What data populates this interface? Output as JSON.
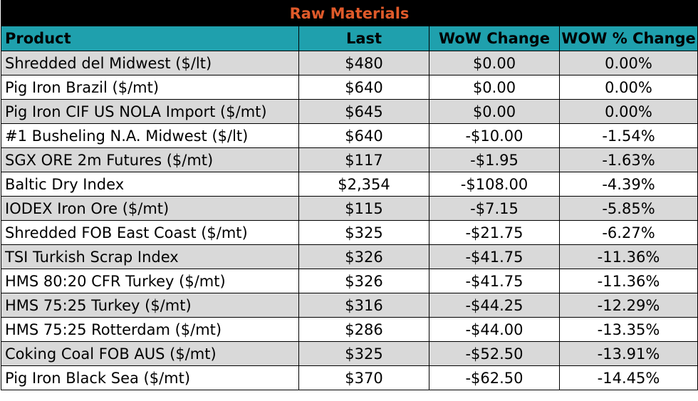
{
  "title": "Raw Materials",
  "headers": [
    "Product",
    "Last",
    "WoW Change",
    "WOW % Change"
  ],
  "rows": [
    [
      "Shredded del  Midwest ($/lt)",
      "$480",
      "$0.00",
      "0.00%"
    ],
    [
      "Pig Iron Brazil ($/mt)",
      "$640",
      "$0.00",
      "0.00%"
    ],
    [
      "Pig Iron CIF US NOLA Import ($/mt)",
      "$645",
      "$0.00",
      "0.00%"
    ],
    [
      "#1 Busheling N.A. Midwest ($/lt)",
      "$640",
      "-$10.00",
      "-1.54%"
    ],
    [
      "SGX ORE 2m Futures ($/mt)",
      "$117",
      "-$1.95",
      "-1.63%"
    ],
    [
      "Baltic Dry Index",
      "$2,354",
      "-$108.00",
      "-4.39%"
    ],
    [
      "IODEX  Iron Ore ($/mt)",
      "$115",
      "-$7.15",
      "-5.85%"
    ],
    [
      "Shredded FOB East Coast ($/mt)",
      "$325",
      "-$21.75",
      "-6.27%"
    ],
    [
      "TSI Turkish Scrap Index",
      "$326",
      "-$41.75",
      "-11.36%"
    ],
    [
      "HMS 80:20 CFR Turkey ($/mt)",
      "$326",
      "-$41.75",
      "-11.36%"
    ],
    [
      "HMS 75:25 Turkey ($/mt)",
      "$316",
      "-$44.25",
      "-12.29%"
    ],
    [
      "HMS 75:25 Rotterdam ($/mt)",
      "$286",
      "-$44.00",
      "-13.35%"
    ],
    [
      "Coking Coal FOB AUS ($/mt)",
      "$325",
      "-$52.50",
      "-13.91%"
    ],
    [
      "Pig Iron Black Sea ($/mt)",
      "$370",
      "-$62.50",
      "-14.45%"
    ]
  ],
  "colors": {
    "title_bg": "#000000",
    "title_text": "#e05a2a",
    "header_bg": "#1fa0ad",
    "row_shade": "#d9d9d9",
    "row_plain": "#ffffff"
  }
}
